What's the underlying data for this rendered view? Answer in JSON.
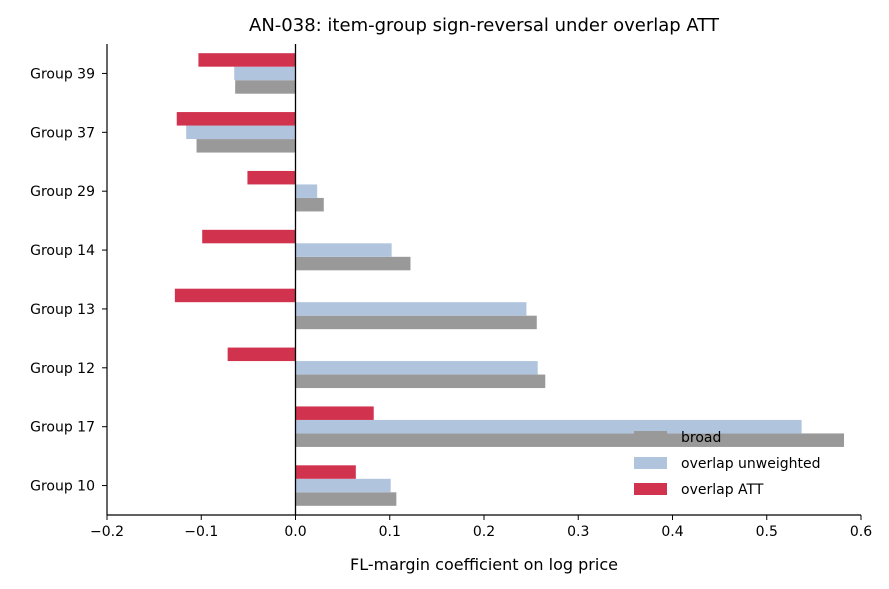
{
  "chart_data": {
    "type": "bar",
    "orientation": "horizontal",
    "title": "AN-038: item-group sign-reversal under overlap ATT",
    "xlabel": "FL-margin coefficient on log price",
    "ylabel": "",
    "xlim": [
      -0.2,
      0.6
    ],
    "x_ticks": [
      "−0.2",
      "−0.1",
      "0.0",
      "0.1",
      "0.2",
      "0.3",
      "0.4",
      "0.5",
      "0.6"
    ],
    "x_tick_values": [
      -0.2,
      -0.1,
      0.0,
      0.1,
      0.2,
      0.3,
      0.4,
      0.5,
      0.6
    ],
    "categories": [
      "Group 10",
      "Group 17",
      "Group 12",
      "Group 13",
      "Group 14",
      "Group 29",
      "Group 37",
      "Group 39"
    ],
    "series": [
      {
        "name": "broad",
        "color": "#999999",
        "values": [
          0.107,
          0.582,
          0.265,
          0.256,
          0.122,
          0.03,
          -0.105,
          -0.064
        ]
      },
      {
        "name": "overlap unweighted",
        "color": "#b0c4de",
        "values": [
          0.101,
          0.537,
          0.257,
          0.245,
          0.102,
          0.023,
          -0.116,
          -0.065
        ]
      },
      {
        "name": "overlap ATT",
        "color": "#d1334f",
        "values": [
          0.064,
          0.083,
          -0.072,
          -0.128,
          -0.099,
          -0.051,
          -0.126,
          -0.103
        ]
      }
    ],
    "legend_position": "lower-right",
    "grid": false
  }
}
